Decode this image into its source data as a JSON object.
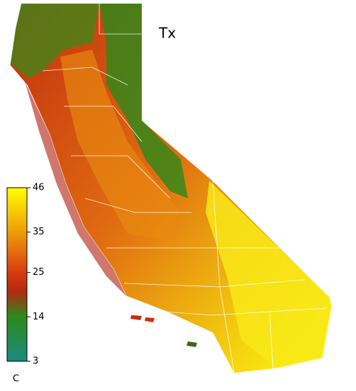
{
  "title": "Tx",
  "legend": {
    "unit": "C",
    "range": [
      3,
      46
    ],
    "ticks": [
      3,
      14,
      25,
      35,
      46
    ]
  }
}
